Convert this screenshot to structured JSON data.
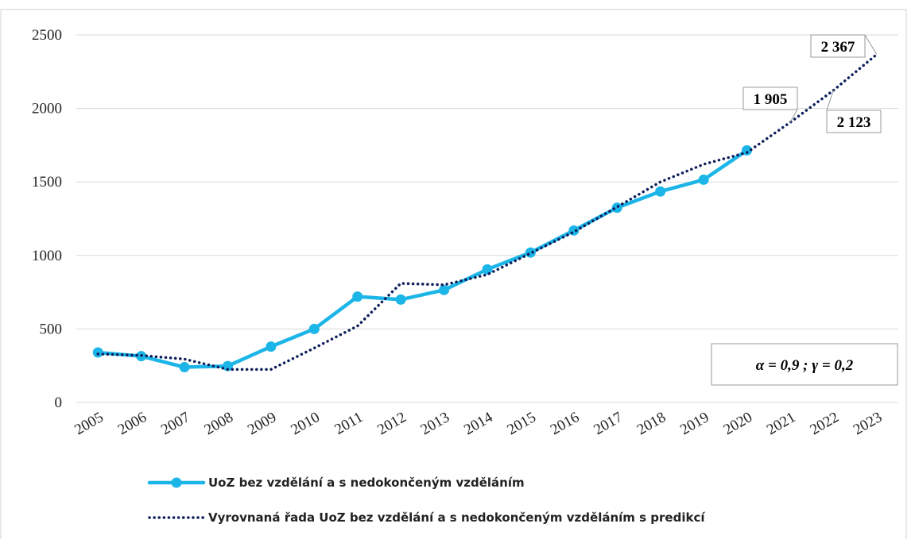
{
  "chart_data": {
    "type": "line",
    "categories": [
      "2005",
      "2006",
      "2007",
      "2008",
      "2009",
      "2010",
      "2011",
      "2012",
      "2013",
      "2014",
      "2015",
      "2016",
      "2017",
      "2018",
      "2019",
      "2020",
      "2021",
      "2022",
      "2023"
    ],
    "series": [
      {
        "name": "UoZ bez vzdělání a s nedokončeným vzděláním",
        "color": "#1cb5e8",
        "style": "solid",
        "marker": true,
        "values": [
          340,
          315,
          240,
          248,
          380,
          500,
          720,
          700,
          765,
          905,
          1020,
          1170,
          1325,
          1435,
          1515,
          1715,
          null,
          null,
          null
        ]
      },
      {
        "name": "Vyrovnaná řada UoZ bez vzdělání a s nedokončeným vzděláním s predikcí",
        "color": "#0e1f5b",
        "style": "dotted",
        "marker": false,
        "values": [
          330,
          320,
          295,
          225,
          225,
          370,
          520,
          810,
          800,
          870,
          1015,
          1160,
          1330,
          1500,
          1620,
          1700,
          1905,
          2123,
          2367
        ],
        "value_labels": [
          null,
          null,
          null,
          null,
          null,
          null,
          null,
          null,
          null,
          null,
          null,
          null,
          null,
          null,
          null,
          null,
          "1 905",
          "2 123",
          "2 367"
        ]
      }
    ],
    "ylim": [
      0,
      2500
    ],
    "yticks": [
      0,
      500,
      1000,
      1500,
      2000,
      2500
    ],
    "grid": true,
    "annotations": [
      "α = 0,9 ; γ = 0,2"
    ],
    "legend": "bottom"
  }
}
